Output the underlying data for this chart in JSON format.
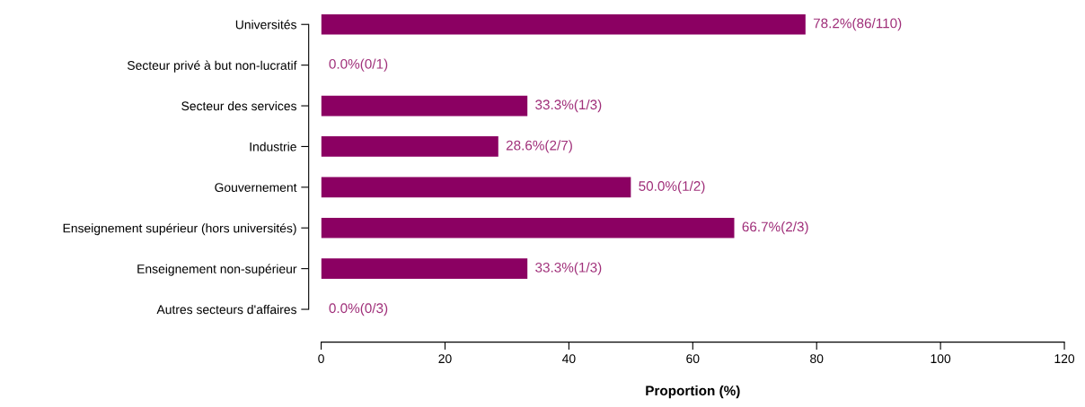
{
  "chart_data": {
    "type": "bar",
    "orientation": "horizontal",
    "xlabel": "Proportion (%)",
    "categories": [
      "Universités",
      "Secteur privé à but non-lucratif",
      "Secteur des services",
      "Industrie",
      "Gouvernement",
      "Enseignement supérieur (hors universités)",
      "Enseignement non-supérieur",
      "Autres secteurs d'affaires"
    ],
    "values": [
      78.2,
      0.0,
      33.3,
      28.6,
      50.0,
      66.7,
      33.3,
      0.0
    ],
    "value_labels": [
      "78.2%(86/110)",
      "0.0%(0/1)",
      "33.3%(1/3)",
      "28.6%(2/7)",
      "50.0%(1/2)",
      "66.7%(2/3)",
      "33.3%(1/3)",
      "0.0%(0/3)"
    ],
    "color": "#8b0062",
    "xlim": [
      0,
      120
    ],
    "xticks": [
      0,
      20,
      40,
      60,
      80,
      100,
      120
    ],
    "grid": false,
    "legend": false
  }
}
